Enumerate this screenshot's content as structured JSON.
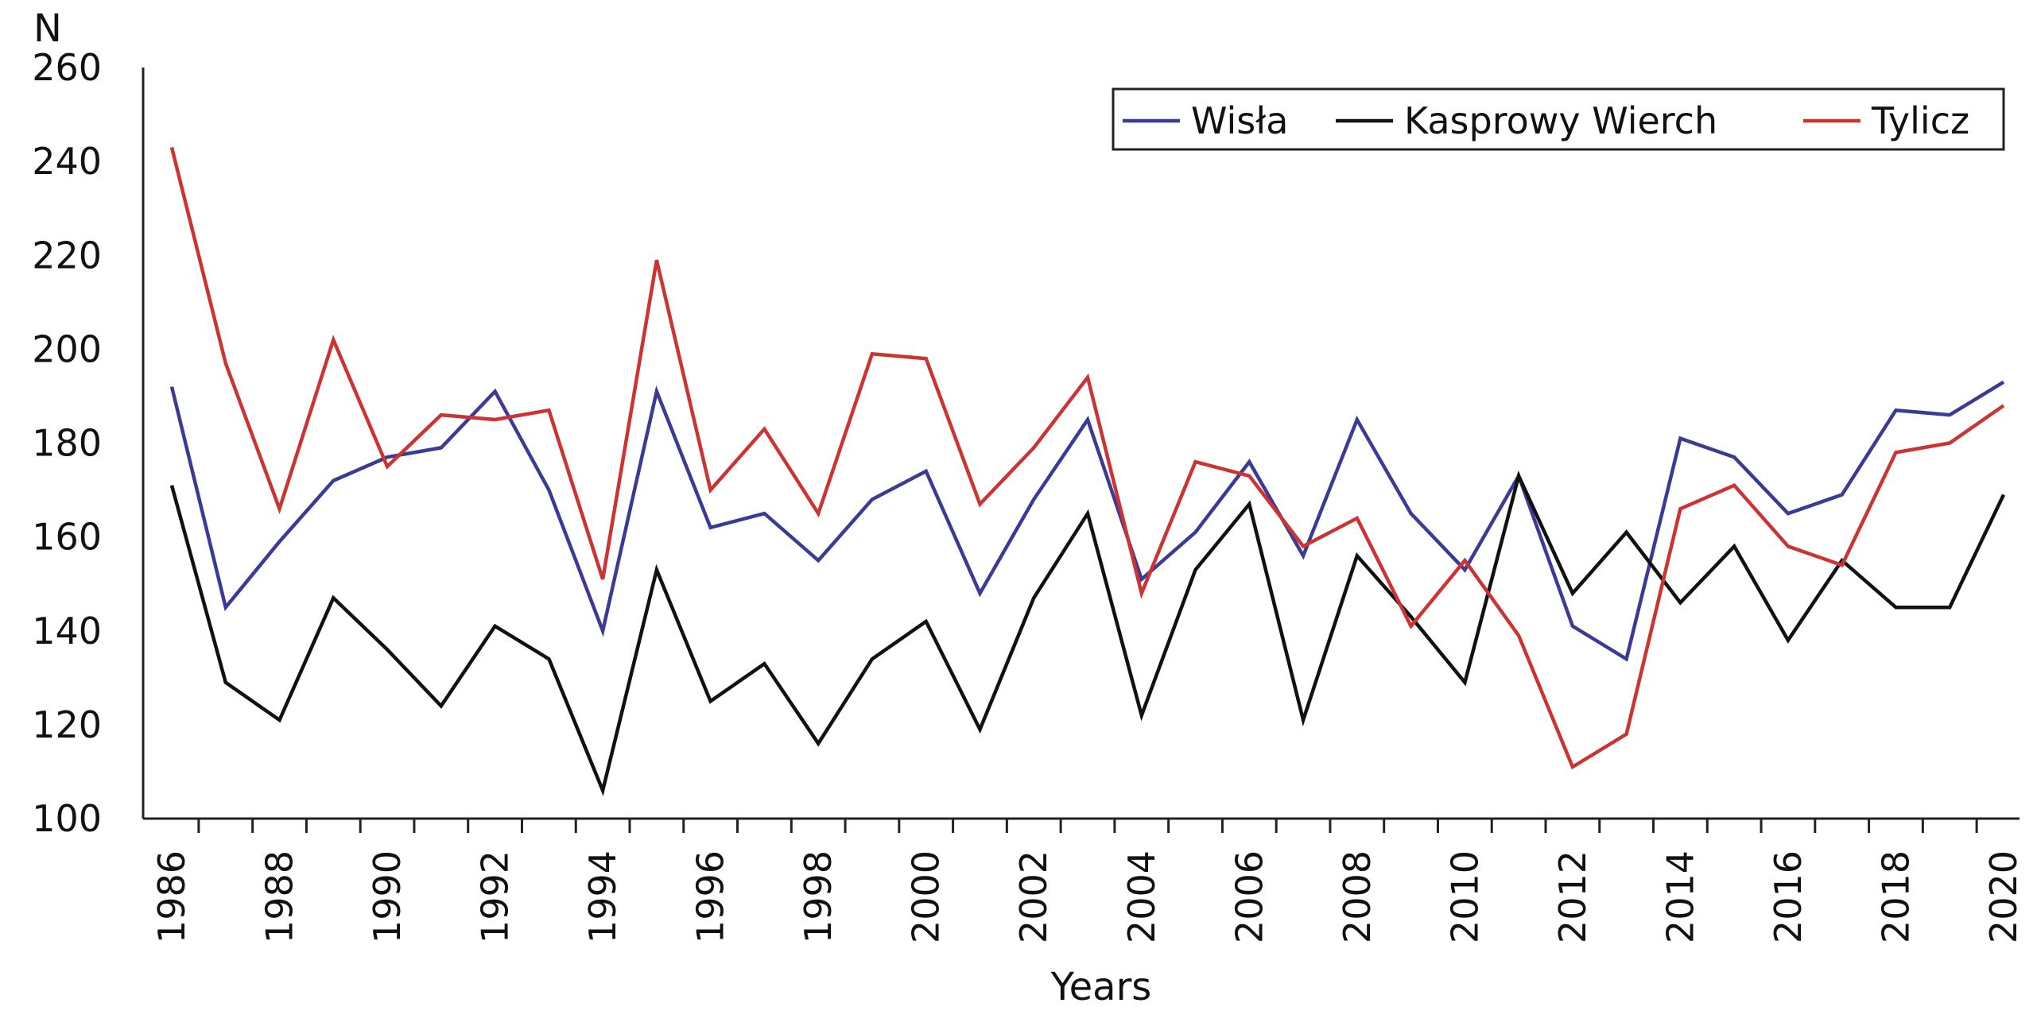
{
  "chart_data": {
    "type": "line",
    "title": "",
    "xlabel": "Years",
    "ylabel": "N",
    "ylim": [
      100,
      260
    ],
    "yticks": [
      100,
      120,
      140,
      160,
      180,
      200,
      220,
      240,
      260
    ],
    "xlim": [
      1986,
      2020
    ],
    "xtick_labels": [
      "1986",
      "1988",
      "1990",
      "1992",
      "1994",
      "1996",
      "1998",
      "2000",
      "2002",
      "2004",
      "2006",
      "2008",
      "2010",
      "2012",
      "2014",
      "2016",
      "2018",
      "2020"
    ],
    "legend_position": "top-right",
    "grid": false,
    "x": [
      1986,
      1987,
      1988,
      1989,
      1990,
      1991,
      1992,
      1993,
      1994,
      1995,
      1996,
      1997,
      1998,
      1999,
      2000,
      2001,
      2002,
      2003,
      2004,
      2005,
      2006,
      2007,
      2008,
      2009,
      2010,
      2011,
      2012,
      2013,
      2014,
      2015,
      2016,
      2017,
      2018,
      2019,
      2020
    ],
    "series": [
      {
        "name": "Wisła",
        "color": "#3b3b96",
        "values": [
          192,
          145,
          159,
          172,
          177,
          179,
          191,
          170,
          140,
          191,
          162,
          165,
          155,
          168,
          174,
          148,
          168,
          185,
          151,
          161,
          176,
          156,
          185,
          165,
          153,
          173,
          141,
          134,
          181,
          177,
          165,
          169,
          187,
          186,
          193
        ]
      },
      {
        "name": "Kasprowy Wierch",
        "color": "#111111",
        "values": [
          171,
          129,
          121,
          147,
          136,
          124,
          141,
          134,
          106,
          153,
          125,
          133,
          116,
          134,
          142,
          119,
          147,
          165,
          122,
          153,
          167,
          121,
          156,
          143,
          129,
          173,
          148,
          161,
          146,
          158,
          138,
          155,
          145,
          145,
          169
        ]
      },
      {
        "name": "Tylicz",
        "color": "#cc3333",
        "values": [
          243,
          197,
          166,
          202,
          175,
          186,
          185,
          187,
          151,
          219,
          170,
          183,
          165,
          199,
          198,
          167,
          179,
          194,
          148,
          176,
          173,
          158,
          164,
          141,
          155,
          139,
          111,
          118,
          166,
          171,
          158,
          154,
          178,
          180,
          188
        ]
      }
    ]
  }
}
